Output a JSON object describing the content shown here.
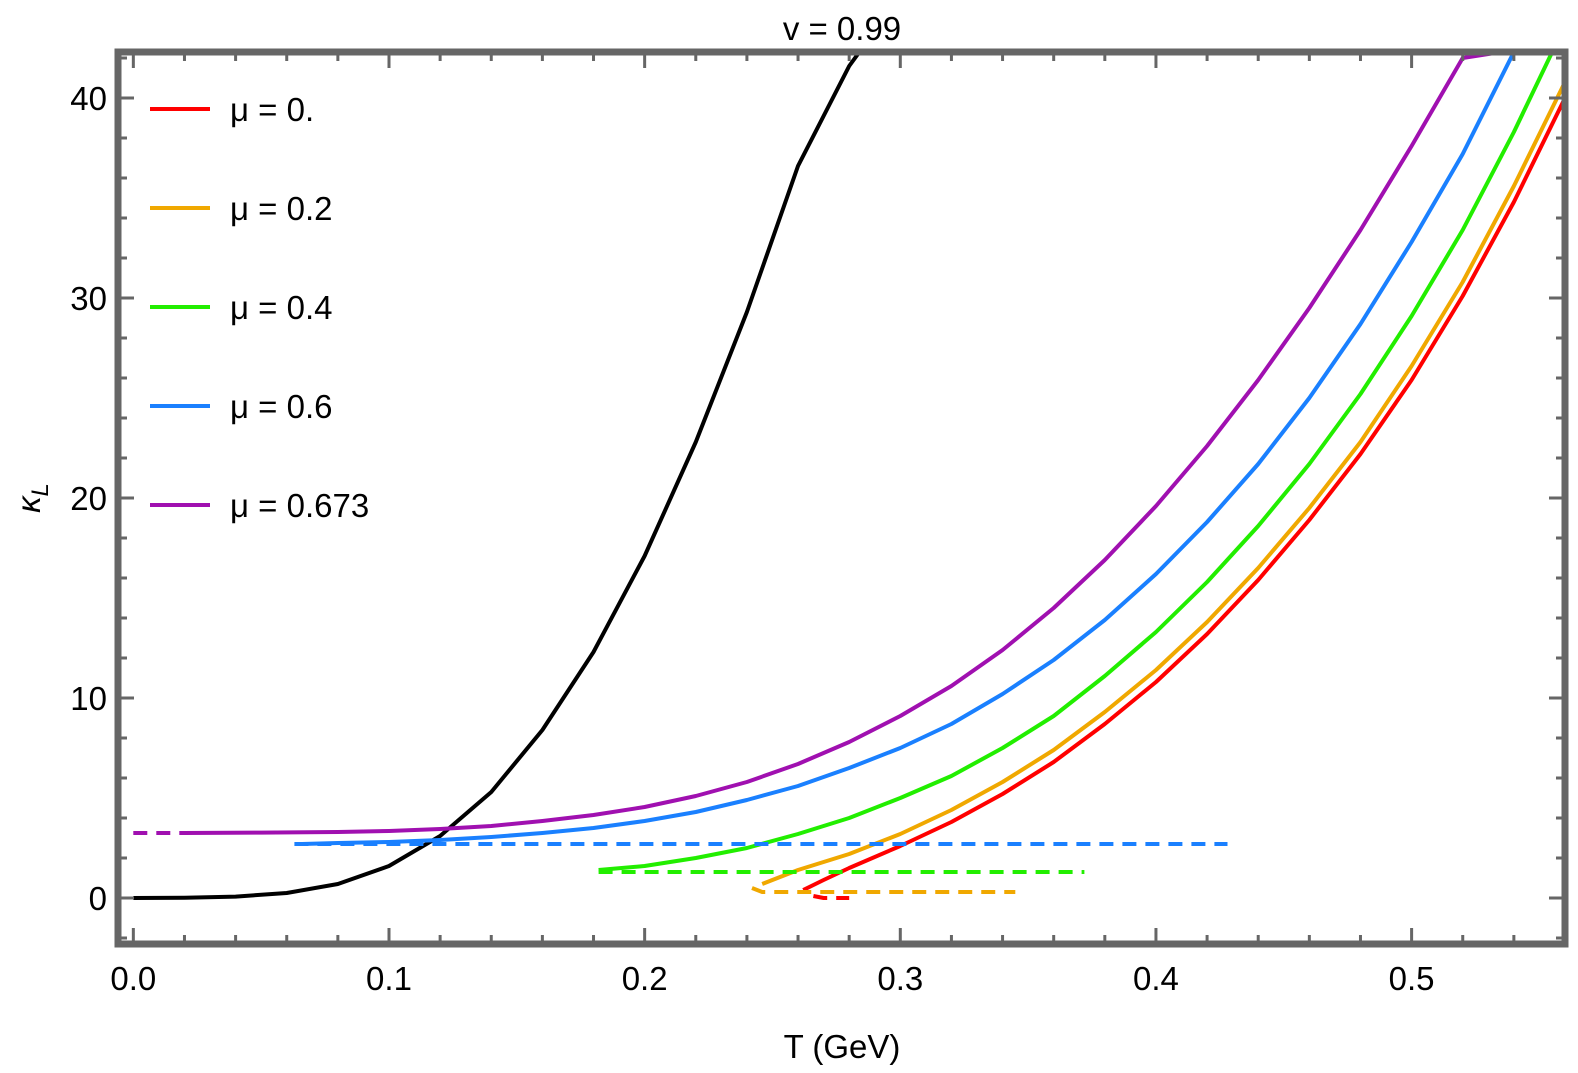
{
  "chart_data": {
    "type": "line",
    "title": "v = 0.99",
    "xlabel": "T (GeV)",
    "ylabel": "κ_L",
    "ylabel_main": "κ",
    "ylabel_sub": "L",
    "xlim": [
      -0.006,
      0.56
    ],
    "ylim": [
      -2.3,
      42.3
    ],
    "xticks": [
      0.0,
      0.1,
      0.2,
      0.3,
      0.4,
      0.5
    ],
    "xtick_labels": [
      "0.0",
      "0.1",
      "0.2",
      "0.3",
      "0.4",
      "0.5"
    ],
    "yticks": [
      0,
      10,
      20,
      30,
      40
    ],
    "ytick_labels": [
      "0",
      "10",
      "20",
      "30",
      "40"
    ],
    "legend_position": "top-left",
    "grid": false,
    "series": [
      {
        "name": "",
        "color": "#000000",
        "style": "solid",
        "x": [
          0.0,
          0.02,
          0.04,
          0.06,
          0.08,
          0.1,
          0.12,
          0.14,
          0.16,
          0.18,
          0.2,
          0.22,
          0.24,
          0.26,
          0.27,
          0.28,
          0.284
        ],
        "y": [
          0.0,
          0.01,
          0.07,
          0.25,
          0.7,
          1.6,
          3.1,
          5.3,
          8.4,
          12.3,
          17.1,
          22.8,
          29.3,
          36.6,
          39.1,
          41.6,
          42.3
        ]
      },
      {
        "name": "μ = 0.",
        "color": "#ff0000",
        "style": "solid",
        "x": [
          0.262,
          0.27,
          0.28,
          0.3,
          0.32,
          0.34,
          0.36,
          0.38,
          0.4,
          0.42,
          0.44,
          0.46,
          0.48,
          0.5,
          0.52,
          0.54,
          0.56
        ],
        "y": [
          0.4,
          0.9,
          1.5,
          2.6,
          3.8,
          5.2,
          6.8,
          8.7,
          10.8,
          13.2,
          15.9,
          18.9,
          22.2,
          25.9,
          30.1,
          34.8,
          40.0
        ]
      },
      {
        "name": "",
        "color": "#ff0000",
        "style": "dashed",
        "x": [
          0.266,
          0.27,
          0.28
        ],
        "y": [
          0.1,
          0.0,
          0.0
        ]
      },
      {
        "name": "μ = 0.2",
        "color": "#f0a800",
        "style": "solid",
        "x": [
          0.246,
          0.26,
          0.28,
          0.3,
          0.32,
          0.34,
          0.36,
          0.38,
          0.4,
          0.42,
          0.44,
          0.46,
          0.48,
          0.5,
          0.52,
          0.54,
          0.56
        ],
        "y": [
          0.7,
          1.4,
          2.2,
          3.2,
          4.4,
          5.8,
          7.4,
          9.3,
          11.4,
          13.8,
          16.5,
          19.5,
          22.8,
          26.6,
          30.8,
          35.6,
          40.8
        ]
      },
      {
        "name": "",
        "color": "#f0a800",
        "style": "dashed",
        "x": [
          0.242,
          0.246,
          0.26,
          0.3,
          0.345
        ],
        "y": [
          0.5,
          0.3,
          0.3,
          0.3,
          0.3
        ]
      },
      {
        "name": "μ = 0.4",
        "color": "#22ee00",
        "style": "solid",
        "x": [
          0.182,
          0.2,
          0.22,
          0.24,
          0.26,
          0.28,
          0.3,
          0.32,
          0.34,
          0.36,
          0.38,
          0.4,
          0.42,
          0.44,
          0.46,
          0.48,
          0.5,
          0.52,
          0.54,
          0.555
        ],
        "y": [
          1.4,
          1.6,
          2.0,
          2.5,
          3.2,
          4.0,
          5.0,
          6.1,
          7.5,
          9.1,
          11.1,
          13.3,
          15.8,
          18.6,
          21.7,
          25.2,
          29.1,
          33.4,
          38.3,
          42.3
        ]
      },
      {
        "name": "",
        "color": "#22ee00",
        "style": "dashed",
        "x": [
          0.182,
          0.3,
          0.372
        ],
        "y": [
          1.3,
          1.3,
          1.3
        ]
      },
      {
        "name": "μ = 0.6",
        "color": "#1a80ff",
        "style": "solid",
        "x": [
          0.066,
          0.08,
          0.1,
          0.12,
          0.14,
          0.16,
          0.18,
          0.2,
          0.22,
          0.24,
          0.26,
          0.28,
          0.3,
          0.32,
          0.34,
          0.36,
          0.38,
          0.4,
          0.42,
          0.44,
          0.46,
          0.48,
          0.5,
          0.52,
          0.54
        ],
        "y": [
          2.7,
          2.75,
          2.8,
          2.9,
          3.05,
          3.25,
          3.5,
          3.85,
          4.3,
          4.9,
          5.6,
          6.5,
          7.5,
          8.7,
          10.2,
          11.9,
          13.9,
          16.2,
          18.8,
          21.7,
          25.0,
          28.7,
          32.8,
          37.2,
          42.3
        ]
      },
      {
        "name": "",
        "color": "#1a80ff",
        "style": "dashed",
        "x": [
          0.063,
          0.2,
          0.428
        ],
        "y": [
          2.7,
          2.7,
          2.7
        ]
      },
      {
        "name": "μ = 0.673",
        "color": "#a010b0",
        "style": "solid",
        "x": [
          0.02,
          0.05,
          0.08,
          0.1,
          0.12,
          0.14,
          0.16,
          0.18,
          0.2,
          0.22,
          0.24,
          0.26,
          0.28,
          0.3,
          0.32,
          0.34,
          0.36,
          0.38,
          0.4,
          0.42,
          0.44,
          0.46,
          0.48,
          0.5,
          0.52,
          0.535
        ],
        "y": [
          3.25,
          3.27,
          3.3,
          3.35,
          3.45,
          3.6,
          3.85,
          4.15,
          4.55,
          5.1,
          5.8,
          6.7,
          7.8,
          9.1,
          10.6,
          12.4,
          14.5,
          16.9,
          19.6,
          22.6,
          25.9,
          29.5,
          33.4,
          37.6,
          42.0,
          42.3
        ]
      },
      {
        "name": "",
        "color": "#a010b0",
        "style": "dashed",
        "x": [
          0.0,
          0.02
        ],
        "y": [
          3.25,
          3.25
        ]
      }
    ]
  }
}
